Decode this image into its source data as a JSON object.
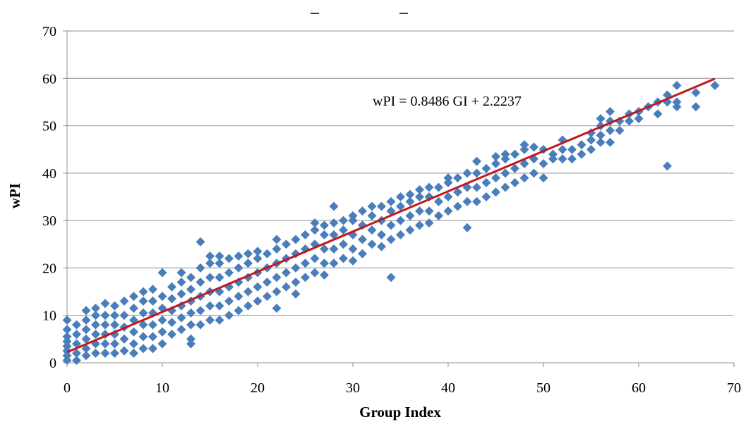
{
  "chart_data": {
    "type": "scatter",
    "xlabel": "Group Index",
    "ylabel": "wPI",
    "xlim": [
      0,
      70
    ],
    "ylim": [
      0,
      70
    ],
    "x_ticks": [
      "0",
      "10",
      "20",
      "30",
      "40",
      "50",
      "60",
      "70"
    ],
    "y_ticks": [
      "0",
      "10",
      "20",
      "30",
      "40",
      "50",
      "60",
      "70"
    ],
    "grid": "horizontal",
    "colors": {
      "points": "#4a7ebb",
      "trendline": "#c0181c",
      "grid": "#8c8c8c"
    },
    "trendline": {
      "slope": 0.8486,
      "intercept": 2.2237,
      "x_range": [
        0,
        68
      ],
      "label": "wPI = 0.8486 GI + 2.2237"
    },
    "series": [
      {
        "marker": "diamond",
        "points": [
          [
            0,
            0.5
          ],
          [
            0,
            1.5
          ],
          [
            0,
            2.5
          ],
          [
            0,
            3.5
          ],
          [
            0,
            4.5
          ],
          [
            0,
            5.5
          ],
          [
            0,
            7
          ],
          [
            0,
            9
          ],
          [
            1,
            0.5
          ],
          [
            1,
            2
          ],
          [
            1,
            4
          ],
          [
            1,
            6
          ],
          [
            1,
            8
          ],
          [
            2,
            1.5
          ],
          [
            2,
            3
          ],
          [
            2,
            5
          ],
          [
            2,
            7
          ],
          [
            2,
            9
          ],
          [
            2,
            11
          ],
          [
            3,
            2
          ],
          [
            3,
            4
          ],
          [
            3,
            6
          ],
          [
            3,
            8
          ],
          [
            3,
            10
          ],
          [
            3,
            11.5
          ],
          [
            4,
            2
          ],
          [
            4,
            4
          ],
          [
            4,
            6
          ],
          [
            4,
            8
          ],
          [
            4,
            10
          ],
          [
            4,
            12.5
          ],
          [
            5,
            2
          ],
          [
            5,
            4
          ],
          [
            5,
            6
          ],
          [
            5,
            8
          ],
          [
            5,
            10
          ],
          [
            5,
            12
          ],
          [
            6,
            2.5
          ],
          [
            6,
            5
          ],
          [
            6,
            7.5
          ],
          [
            6,
            10
          ],
          [
            6,
            13
          ],
          [
            7,
            2
          ],
          [
            7,
            4
          ],
          [
            7,
            6.5
          ],
          [
            7,
            9
          ],
          [
            7,
            11.5
          ],
          [
            7,
            14
          ],
          [
            8,
            3
          ],
          [
            8,
            5.5
          ],
          [
            8,
            8
          ],
          [
            8,
            10.5
          ],
          [
            8,
            13
          ],
          [
            8,
            15
          ],
          [
            9,
            3
          ],
          [
            9,
            5.5
          ],
          [
            9,
            8
          ],
          [
            9,
            10.5
          ],
          [
            9,
            13
          ],
          [
            9,
            15.5
          ],
          [
            10,
            4
          ],
          [
            10,
            6.5
          ],
          [
            10,
            9
          ],
          [
            10,
            11.5
          ],
          [
            10,
            14
          ],
          [
            10,
            19
          ],
          [
            11,
            6
          ],
          [
            11,
            8.5
          ],
          [
            11,
            11
          ],
          [
            11,
            13.5
          ],
          [
            11,
            16
          ],
          [
            12,
            7
          ],
          [
            12,
            9.5
          ],
          [
            12,
            12
          ],
          [
            12,
            14.5
          ],
          [
            12,
            17
          ],
          [
            12,
            19
          ],
          [
            13,
            4
          ],
          [
            13,
            5
          ],
          [
            13,
            8
          ],
          [
            13,
            10.5
          ],
          [
            13,
            13
          ],
          [
            13,
            15.5
          ],
          [
            13,
            18
          ],
          [
            14,
            8
          ],
          [
            14,
            11
          ],
          [
            14,
            14
          ],
          [
            14,
            17
          ],
          [
            14,
            20
          ],
          [
            14,
            25.5
          ],
          [
            15,
            9
          ],
          [
            15,
            12
          ],
          [
            15,
            15
          ],
          [
            15,
            18
          ],
          [
            15,
            21
          ],
          [
            15,
            22.5
          ],
          [
            16,
            9
          ],
          [
            16,
            12
          ],
          [
            16,
            15
          ],
          [
            16,
            18
          ],
          [
            16,
            21
          ],
          [
            16,
            22.5
          ],
          [
            17,
            10
          ],
          [
            17,
            13
          ],
          [
            17,
            16
          ],
          [
            17,
            19
          ],
          [
            17,
            22
          ],
          [
            18,
            11
          ],
          [
            18,
            14
          ],
          [
            18,
            17
          ],
          [
            18,
            20
          ],
          [
            18,
            22.5
          ],
          [
            19,
            12
          ],
          [
            19,
            15
          ],
          [
            19,
            18
          ],
          [
            19,
            21
          ],
          [
            19,
            23
          ],
          [
            20,
            13
          ],
          [
            20,
            16
          ],
          [
            20,
            19
          ],
          [
            20,
            22
          ],
          [
            20,
            23.5
          ],
          [
            21,
            14
          ],
          [
            21,
            17
          ],
          [
            21,
            20
          ],
          [
            21,
            23
          ],
          [
            22,
            11.5
          ],
          [
            22,
            15
          ],
          [
            22,
            18
          ],
          [
            22,
            21
          ],
          [
            22,
            24
          ],
          [
            22,
            26
          ],
          [
            23,
            16
          ],
          [
            23,
            19
          ],
          [
            23,
            22
          ],
          [
            23,
            25
          ],
          [
            24,
            14.5
          ],
          [
            24,
            17
          ],
          [
            24,
            20
          ],
          [
            24,
            23
          ],
          [
            24,
            26
          ],
          [
            25,
            18
          ],
          [
            25,
            21
          ],
          [
            25,
            24
          ],
          [
            25,
            27
          ],
          [
            26,
            19
          ],
          [
            26,
            22
          ],
          [
            26,
            25
          ],
          [
            26,
            28
          ],
          [
            26,
            29.5
          ],
          [
            27,
            18.5
          ],
          [
            27,
            21
          ],
          [
            27,
            24
          ],
          [
            27,
            27
          ],
          [
            27,
            29
          ],
          [
            28,
            21
          ],
          [
            28,
            24
          ],
          [
            28,
            27
          ],
          [
            28,
            29.5
          ],
          [
            28,
            33
          ],
          [
            29,
            22
          ],
          [
            29,
            25
          ],
          [
            29,
            28
          ],
          [
            29,
            30
          ],
          [
            30,
            21.5
          ],
          [
            30,
            24
          ],
          [
            30,
            27
          ],
          [
            30,
            30
          ],
          [
            30,
            31
          ],
          [
            31,
            23
          ],
          [
            31,
            26
          ],
          [
            31,
            29
          ],
          [
            31,
            32
          ],
          [
            32,
            25
          ],
          [
            32,
            28
          ],
          [
            32,
            31
          ],
          [
            32,
            33
          ],
          [
            33,
            24.5
          ],
          [
            33,
            27
          ],
          [
            33,
            30
          ],
          [
            33,
            33
          ],
          [
            34,
            18
          ],
          [
            34,
            26
          ],
          [
            34,
            29
          ],
          [
            34,
            32
          ],
          [
            34,
            34
          ],
          [
            35,
            27
          ],
          [
            35,
            30
          ],
          [
            35,
            33
          ],
          [
            35,
            35
          ],
          [
            36,
            28
          ],
          [
            36,
            31
          ],
          [
            36,
            34
          ],
          [
            36,
            35.5
          ],
          [
            37,
            29
          ],
          [
            37,
            32
          ],
          [
            37,
            35
          ],
          [
            37,
            36.5
          ],
          [
            38,
            29.5
          ],
          [
            38,
            32
          ],
          [
            38,
            35
          ],
          [
            38,
            37
          ],
          [
            39,
            31
          ],
          [
            39,
            34
          ],
          [
            39,
            37
          ],
          [
            40,
            32
          ],
          [
            40,
            35
          ],
          [
            40,
            38
          ],
          [
            40,
            39
          ],
          [
            41,
            33
          ],
          [
            41,
            36
          ],
          [
            41,
            39
          ],
          [
            42,
            28.5
          ],
          [
            42,
            34
          ],
          [
            42,
            37
          ],
          [
            42,
            40
          ],
          [
            43,
            34
          ],
          [
            43,
            37
          ],
          [
            43,
            40
          ],
          [
            43,
            42.5
          ],
          [
            44,
            35
          ],
          [
            44,
            38
          ],
          [
            44,
            41
          ],
          [
            45,
            36
          ],
          [
            45,
            39
          ],
          [
            45,
            42
          ],
          [
            45,
            43.5
          ],
          [
            46,
            37
          ],
          [
            46,
            40
          ],
          [
            46,
            43
          ],
          [
            46,
            44
          ],
          [
            47,
            38
          ],
          [
            47,
            41
          ],
          [
            47,
            44
          ],
          [
            48,
            39
          ],
          [
            48,
            42
          ],
          [
            48,
            45
          ],
          [
            48,
            46
          ],
          [
            49,
            40
          ],
          [
            49,
            43
          ],
          [
            49,
            45.5
          ],
          [
            50,
            39
          ],
          [
            50,
            42
          ],
          [
            50,
            45
          ],
          [
            51,
            43
          ],
          [
            51,
            44
          ],
          [
            52,
            43
          ],
          [
            52,
            45
          ],
          [
            52,
            47
          ],
          [
            53,
            43
          ],
          [
            53,
            45
          ],
          [
            54,
            44
          ],
          [
            54,
            46
          ],
          [
            55,
            45
          ],
          [
            55,
            47
          ],
          [
            55,
            48.5
          ],
          [
            56,
            46.5
          ],
          [
            56,
            48
          ],
          [
            56,
            50
          ],
          [
            56,
            51.5
          ],
          [
            57,
            46.5
          ],
          [
            57,
            49
          ],
          [
            57,
            51
          ],
          [
            57,
            53
          ],
          [
            58,
            49
          ],
          [
            58,
            51
          ],
          [
            59,
            51
          ],
          [
            59,
            52.5
          ],
          [
            60,
            51.5
          ],
          [
            60,
            53
          ],
          [
            61,
            54
          ],
          [
            62,
            52.5
          ],
          [
            62,
            55
          ],
          [
            63,
            41.5
          ],
          [
            63,
            55
          ],
          [
            63,
            56.5
          ],
          [
            64,
            54
          ],
          [
            64,
            55
          ],
          [
            64,
            58.5
          ],
          [
            66,
            54
          ],
          [
            66,
            57
          ],
          [
            68,
            58.5
          ]
        ]
      }
    ]
  }
}
